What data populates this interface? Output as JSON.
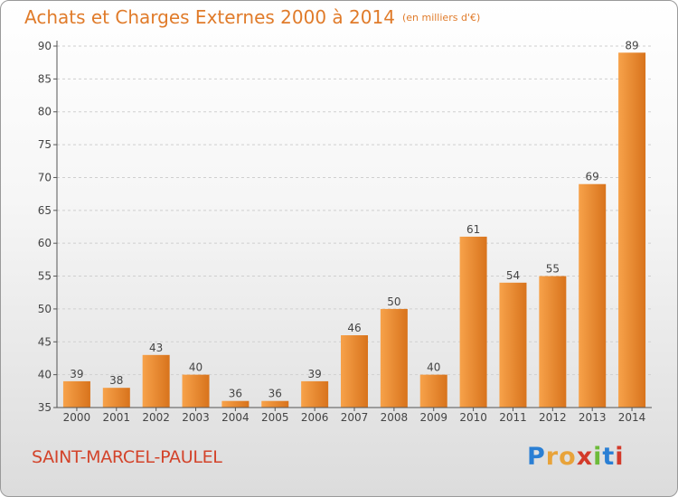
{
  "header": {
    "title": "Achats et Charges Externes 2000 à 2014",
    "unit_note": "(en milliers d'€)"
  },
  "footer": {
    "city": "SAINT-MARCEL-PAULEL",
    "logo": {
      "letters": [
        "P",
        "r",
        "o",
        "x",
        "i",
        "t",
        "i"
      ],
      "colors": [
        "#2a7fd4",
        "#e8a33a",
        "#e8a33a",
        "#d33a2a",
        "#6dbb3a",
        "#2a7fd4",
        "#d33a2a"
      ]
    }
  },
  "colors": {
    "bar_light": "#f7a24a",
    "bar_dark": "#d8731c",
    "grid": "#cfcfcf"
  },
  "chart_data": {
    "type": "bar",
    "categories": [
      "2000",
      "2001",
      "2002",
      "2003",
      "2004",
      "2005",
      "2006",
      "2007",
      "2008",
      "2009",
      "2010",
      "2011",
      "2012",
      "2013",
      "2014"
    ],
    "values": [
      39,
      38,
      43,
      40,
      36,
      36,
      39,
      46,
      50,
      40,
      61,
      54,
      55,
      69,
      89
    ],
    "ylim": [
      35,
      90
    ],
    "yticks": [
      35,
      40,
      45,
      50,
      55,
      60,
      65,
      70,
      75,
      80,
      85,
      90
    ],
    "grid": true
  }
}
